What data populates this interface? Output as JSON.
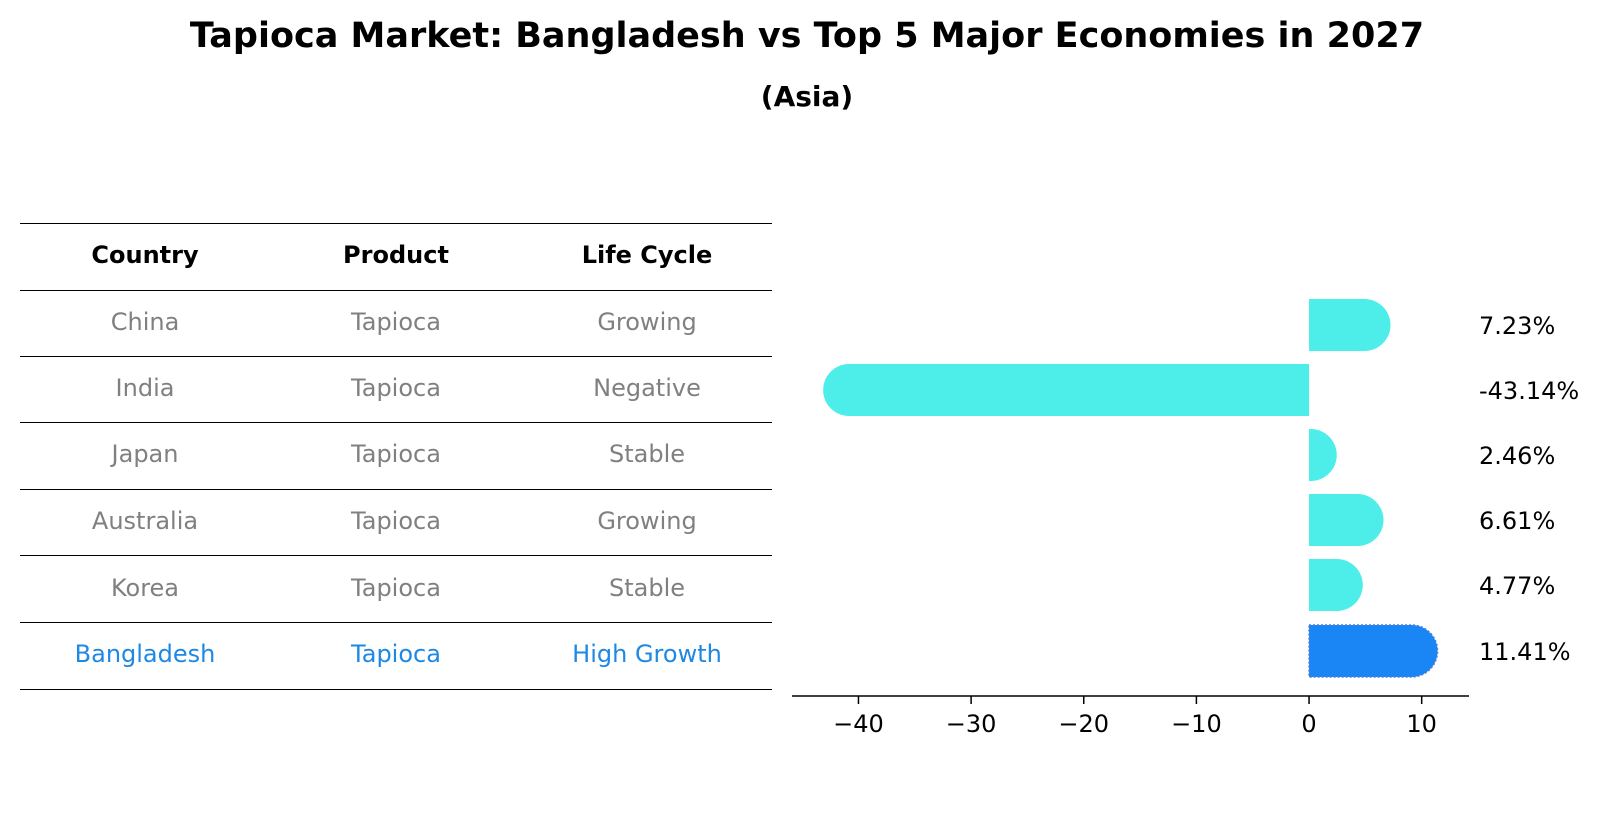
{
  "title": "Tapioca Market: Bangladesh vs Top 5 Major Economies in 2027",
  "subtitle": "(Asia)",
  "table": {
    "headers": [
      "Country",
      "Product",
      "Life Cycle"
    ],
    "rows": [
      [
        "China",
        "Tapioca",
        "Growing"
      ],
      [
        "India",
        "Tapioca",
        "Negative"
      ],
      [
        "Japan",
        "Tapioca",
        "Stable"
      ],
      [
        "Australia",
        "Tapioca",
        "Growing"
      ],
      [
        "Korea",
        "Tapioca",
        "Stable"
      ],
      [
        "Bangladesh",
        "Tapioca",
        "High Growth"
      ]
    ],
    "highlight_row": 5
  },
  "colors": {
    "bar": "#4deeea",
    "highlight_bar": "#1a85f5",
    "text_muted": "#808080",
    "highlight_text": "#1e88e5"
  },
  "chart_data": {
    "type": "bar",
    "orientation": "horizontal",
    "categories": [
      "China",
      "India",
      "Japan",
      "Australia",
      "Korea",
      "Bangladesh"
    ],
    "values": [
      7.23,
      -43.14,
      2.46,
      6.61,
      4.77,
      11.41
    ],
    "value_labels": [
      "7.23%",
      "-43.14%",
      "2.46%",
      "6.61%",
      "4.77%",
      "11.41%"
    ],
    "xlim": [
      -45.9,
      14.2
    ],
    "xticks": [
      -40,
      -30,
      -20,
      -10,
      0,
      10
    ],
    "xtick_labels": [
      "−40",
      "−30",
      "−20",
      "−10",
      "0",
      "10"
    ],
    "highlight_index": 5
  }
}
